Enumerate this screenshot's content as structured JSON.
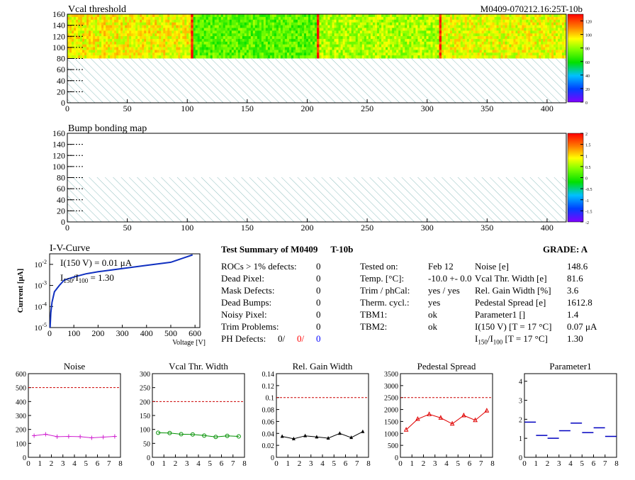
{
  "header": {
    "title": "Vcal threshold",
    "module_id": "M0409-070212.16:25T-10b"
  },
  "map1": {
    "title": "Vcal threshold",
    "x_ticks": [
      "0",
      "50",
      "100",
      "150",
      "200",
      "250",
      "300",
      "350",
      "400"
    ],
    "y_ticks": [
      "0",
      "20",
      "40",
      "60",
      "80",
      "100",
      "120",
      "140",
      "160"
    ],
    "palette_ticks": [
      "0",
      "20",
      "40",
      "60",
      "80",
      "100",
      "120"
    ],
    "segments": [
      {
        "from": 0,
        "to": 103,
        "level": 0.72
      },
      {
        "from": 103,
        "to": 105,
        "level": 0.95
      },
      {
        "from": 105,
        "to": 208,
        "level": 0.55
      },
      {
        "from": 208,
        "to": 210,
        "level": 0.95
      },
      {
        "from": 210,
        "to": 310,
        "level": 0.64
      },
      {
        "from": 310,
        "to": 312,
        "level": 0.95
      },
      {
        "from": 312,
        "to": 416,
        "level": 0.7
      }
    ]
  },
  "map2": {
    "title": "Bump bonding map",
    "x_ticks": [
      "0",
      "50",
      "100",
      "150",
      "200",
      "250",
      "300",
      "350",
      "400"
    ],
    "y_ticks": [
      "0",
      "20",
      "40",
      "60",
      "80",
      "100",
      "120",
      "140",
      "160"
    ],
    "palette_ticks": [
      "-2",
      "-1.5",
      "-1",
      "-0.5",
      "0",
      "0.5",
      "1",
      "1.5",
      "2"
    ]
  },
  "iv": {
    "title": "I-V-Curve",
    "ylabel": "Current [μA]",
    "xlabel": "Voltage [V]",
    "annot1": "I(150 V) = 0.01 μA",
    "annot2_pre": "I",
    "annot2_sub1": "150",
    "annot2_mid": "/I",
    "annot2_sub2": "100",
    "annot2_post": " =  1.30",
    "x_ticks": [
      "0",
      "100",
      "200",
      "300",
      "400",
      "500",
      "600"
    ]
  },
  "summary": {
    "title": "Test Summary of M0409",
    "tag": "T-10b",
    "grade_label": "GRADE:  A",
    "left_rows": [
      {
        "label": "ROCs > 1% defects:",
        "value": "0"
      },
      {
        "label": "Dead Pixel:",
        "value": "0"
      },
      {
        "label": "Mask Defects:",
        "value": "0"
      },
      {
        "label": "Dead Bumps:",
        "value": "0"
      },
      {
        "label": "Noisy Pixel:",
        "value": "0"
      },
      {
        "label": "Trim Problems:",
        "value": "0"
      }
    ],
    "ph_label": "PH Defects:",
    "ph_values": [
      "0/",
      "0/",
      "0"
    ],
    "ph_colors": [
      "#000000",
      "#ff0000",
      "#0000ff"
    ],
    "mid_rows": [
      {
        "label": "Tested on:",
        "value": "Feb 12"
      },
      {
        "label": "Temp. [°C]:",
        "value": "-10.0 +- 0.0"
      },
      {
        "label": "Trim / phCal:",
        "value": "yes / yes"
      },
      {
        "label": "Therm. cycl.:",
        "value": "yes"
      },
      {
        "label": "TBM1:",
        "value": "ok"
      },
      {
        "label": "TBM2:",
        "value": "ok"
      }
    ],
    "right_rows": [
      {
        "label": "Noise [e]",
        "value": "148.6"
      },
      {
        "label": "Vcal Thr. Width [e]",
        "value": "81.6"
      },
      {
        "label": "Rel. Gain Width [%]",
        "value": "3.6"
      },
      {
        "label": "Pedestal Spread [e]",
        "value": "1612.8"
      },
      {
        "label": "Parameter1 []",
        "value": "1.4"
      },
      {
        "label": "I(150 V) [T = 17 °C]",
        "value": "0.07 μA"
      }
    ],
    "ratio_row": {
      "pre": "I",
      "sub1": "150",
      "mid": "/I",
      "sub2": "100",
      "post": "  [T = 17 °C]",
      "value": "1.30"
    }
  },
  "chart_data": [
    {
      "type": "line",
      "title": "Noise",
      "x": [
        0.5,
        1.5,
        2.5,
        3.5,
        4.5,
        5.5,
        6.5,
        7.5
      ],
      "values": [
        155,
        165,
        148,
        150,
        148,
        140,
        145,
        150
      ],
      "xlim": [
        0,
        8
      ],
      "ylim": [
        0,
        600
      ],
      "y_ticks": [
        "0",
        "100",
        "200",
        "300",
        "400",
        "500",
        "600"
      ],
      "x_ticks": [
        "0",
        "1",
        "2",
        "3",
        "4",
        "5",
        "6",
        "7",
        "8"
      ],
      "threshold": 500,
      "color": "#d020d0",
      "marker": "plus"
    },
    {
      "type": "line",
      "title": "Vcal Thr. Width",
      "x": [
        0.5,
        1.5,
        2.5,
        3.5,
        4.5,
        5.5,
        6.5,
        7.5
      ],
      "values": [
        88,
        87,
        83,
        82,
        78,
        73,
        77,
        75
      ],
      "xlim": [
        0,
        8
      ],
      "ylim": [
        0,
        300
      ],
      "y_ticks": [
        "0",
        "50",
        "100",
        "150",
        "200",
        "250",
        "300"
      ],
      "x_ticks": [
        "0",
        "1",
        "2",
        "3",
        "4",
        "5",
        "6",
        "7",
        "8"
      ],
      "threshold": 200,
      "color": "#009000",
      "marker": "circle"
    },
    {
      "type": "line",
      "title": "Rel. Gain Width",
      "x": [
        0.5,
        1.5,
        2.5,
        3.5,
        4.5,
        5.5,
        6.5,
        7.5
      ],
      "values": [
        0.035,
        0.031,
        0.036,
        0.034,
        0.032,
        0.04,
        0.033,
        0.043
      ],
      "xlim": [
        0,
        8
      ],
      "ylim": [
        0,
        0.14
      ],
      "y_ticks": [
        "0",
        "0.02",
        "0.04",
        "0.06",
        "0.08",
        "0.1",
        "0.12",
        "0.14"
      ],
      "x_ticks": [
        "0",
        "1",
        "2",
        "3",
        "4",
        "5",
        "6",
        "7",
        "8"
      ],
      "threshold": 0.1,
      "color": "#000000",
      "marker": "triangle"
    },
    {
      "type": "line",
      "title": "Pedestal Spread",
      "x": [
        0.5,
        1.5,
        2.5,
        3.5,
        4.5,
        5.5,
        6.5,
        7.5
      ],
      "values": [
        1150,
        1600,
        1800,
        1650,
        1400,
        1750,
        1550,
        1950
      ],
      "xlim": [
        0,
        8
      ],
      "ylim": [
        0,
        3500
      ],
      "y_ticks": [
        "0",
        "500",
        "1000",
        "1500",
        "2000",
        "2500",
        "3000",
        "3500"
      ],
      "x_ticks": [
        "0",
        "1",
        "2",
        "3",
        "4",
        "5",
        "6",
        "7",
        "8"
      ],
      "threshold": 2500,
      "color": "#e00000",
      "marker": "triangle-open"
    },
    {
      "type": "scatter",
      "title": "Parameter1",
      "x": [
        0.5,
        1.5,
        2.5,
        3.5,
        4.5,
        5.5,
        6.5,
        7.5
      ],
      "values": [
        1.85,
        1.15,
        1.0,
        1.4,
        1.8,
        1.3,
        1.55,
        1.1
      ],
      "xlim": [
        0,
        8
      ],
      "ylim": [
        0,
        4.4
      ],
      "y_ticks": [
        "0",
        "1",
        "2",
        "3",
        "4"
      ],
      "x_ticks": [
        "0",
        "1",
        "2",
        "3",
        "4",
        "5",
        "6",
        "7",
        "8"
      ],
      "color": "#0000c0",
      "marker": "hbar"
    }
  ],
  "colors": {
    "hatch": "#8fbfbf",
    "threshold_line": "#cc0000"
  }
}
